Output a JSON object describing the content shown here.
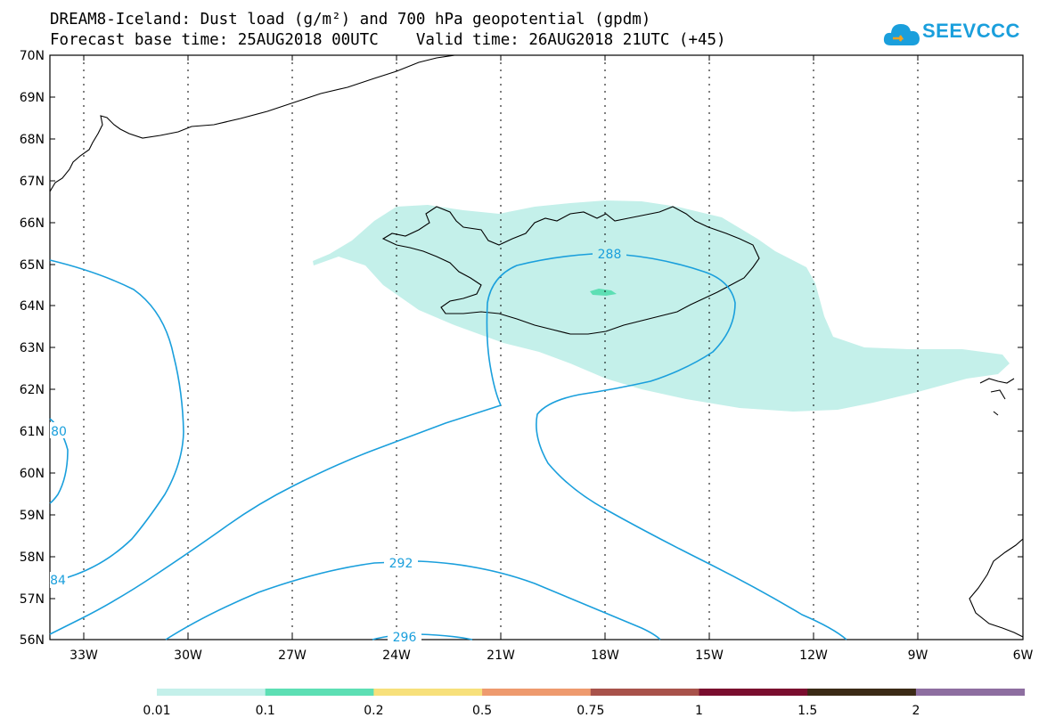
{
  "header": {
    "title_line1": "DREAM8-Iceland: Dust load (g/m²) and 700 hPa geopotential (gpdm)",
    "title_line2": "Forecast base time: 25AUG2018 00UTC    Valid time: 26AUG2018 21UTC (+45)",
    "logo_text": "SEEVCCC"
  },
  "map": {
    "lat_labels": [
      "70N",
      "69N",
      "68N",
      "67N",
      "66N",
      "65N",
      "64N",
      "63N",
      "62N",
      "61N",
      "60N",
      "59N",
      "58N",
      "57N",
      "56N"
    ],
    "lon_labels": [
      "33W",
      "30W",
      "27W",
      "24W",
      "21W",
      "18W",
      "15W",
      "12W",
      "9W",
      "6W"
    ],
    "contour_labels": [
      "288",
      "292",
      "296",
      "80",
      "84"
    ],
    "contour_color": "#1a9fdc",
    "coastline_color": "#000000"
  },
  "colorbar": {
    "labels": [
      "0.01",
      "0.1",
      "0.2",
      "0.5",
      "0.75",
      "1",
      "1.5",
      "2"
    ],
    "colors": [
      "#c4f0ea",
      "#5ddfb4",
      "#f7e07b",
      "#ee9a6e",
      "#a8524a",
      "#7a0d2e",
      "#3b2a15",
      "#8d6ea0"
    ]
  }
}
